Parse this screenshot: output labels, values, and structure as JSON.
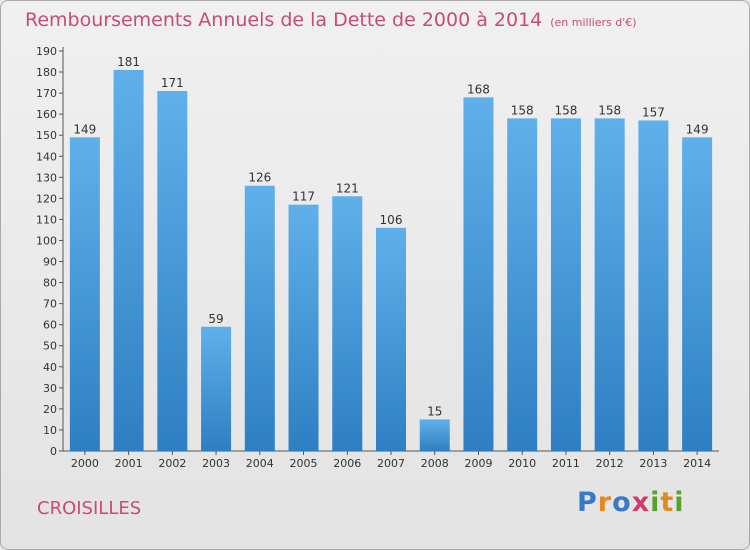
{
  "header": {
    "title": "Remboursements Annuels de la Dette de 2000 à 2014",
    "unit": "(en milliers d'€)"
  },
  "footer": {
    "place": "CROISILLES",
    "logo_text": "Proxiti"
  },
  "colors": {
    "bar_top": "#5fb0ea",
    "bar_bottom": "#2e7fc2",
    "title": "#c84a7a"
  },
  "chart_data": {
    "type": "bar",
    "title": "Remboursements Annuels de la Dette de 2000 à 2014",
    "xlabel": "",
    "ylabel": "",
    "ylim": [
      0,
      190
    ],
    "ytick_step": 10,
    "grid": false,
    "categories": [
      "2000",
      "2001",
      "2002",
      "2003",
      "2004",
      "2005",
      "2006",
      "2007",
      "2008",
      "2009",
      "2010",
      "2011",
      "2012",
      "2013",
      "2014"
    ],
    "values": [
      149,
      181,
      171,
      59,
      126,
      117,
      121,
      106,
      15,
      168,
      158,
      158,
      158,
      157,
      149
    ]
  }
}
